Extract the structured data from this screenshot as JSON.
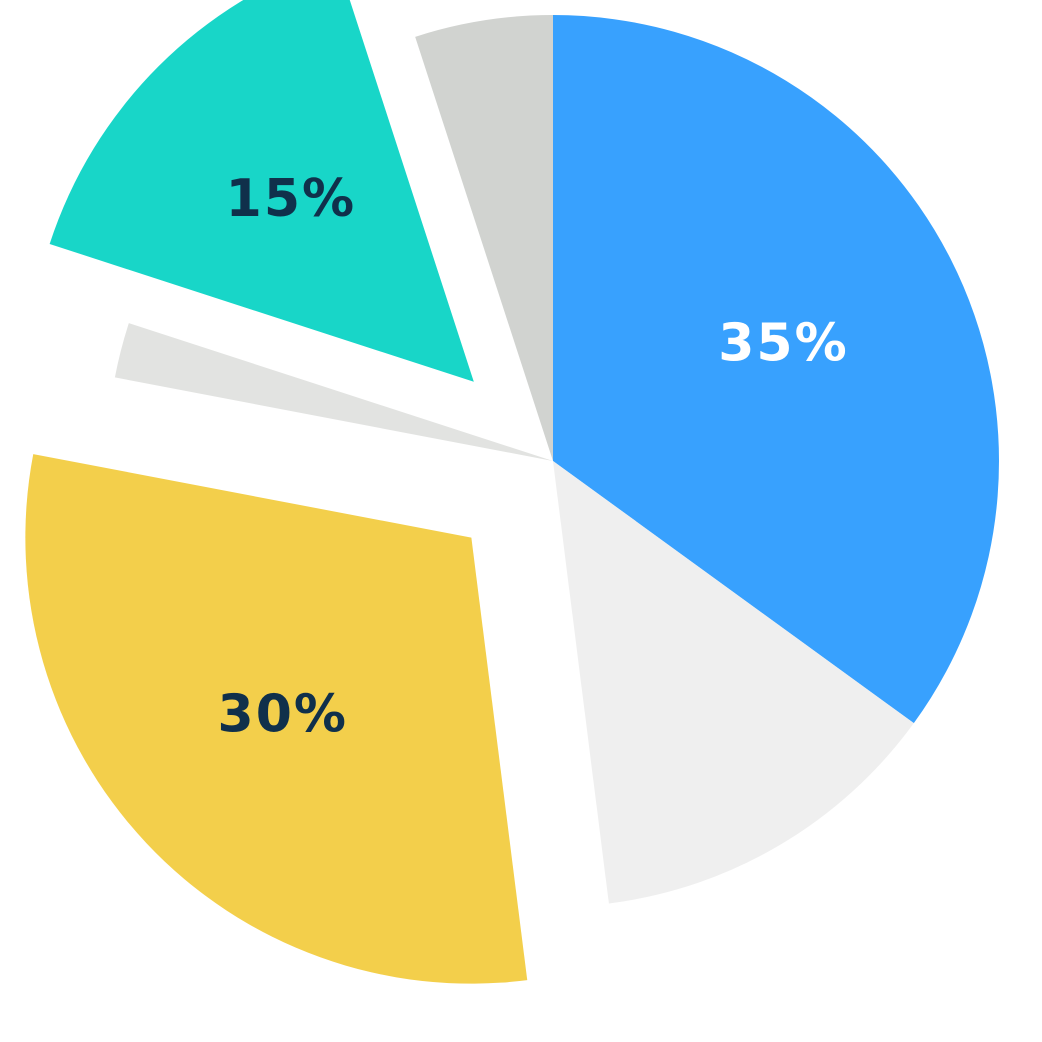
{
  "chart_data": {
    "type": "pie",
    "title": "",
    "legend": "none",
    "slices": [
      {
        "value": 35,
        "label": "35%",
        "color": "#38A1FE",
        "label_color": "#FFFFFF",
        "exploded": false
      },
      {
        "value": 13,
        "label": "",
        "color": "#EFEFEF",
        "label_color": "#1B2A3A",
        "exploded": false
      },
      {
        "value": 30,
        "label": "30%",
        "color": "#F3CF4B",
        "label_color": "#10304B",
        "exploded": true
      },
      {
        "value": 2,
        "label": "",
        "color": "#E2E3E1",
        "label_color": "#1B2A3A",
        "exploded": false
      },
      {
        "value": 15,
        "label": "15%",
        "color": "#18D6C8",
        "label_color": "#10304B",
        "exploded": true
      },
      {
        "value": 5,
        "label": "",
        "color": "#D1D3D0",
        "label_color": "#1B2A3A",
        "exploded": false
      }
    ]
  }
}
